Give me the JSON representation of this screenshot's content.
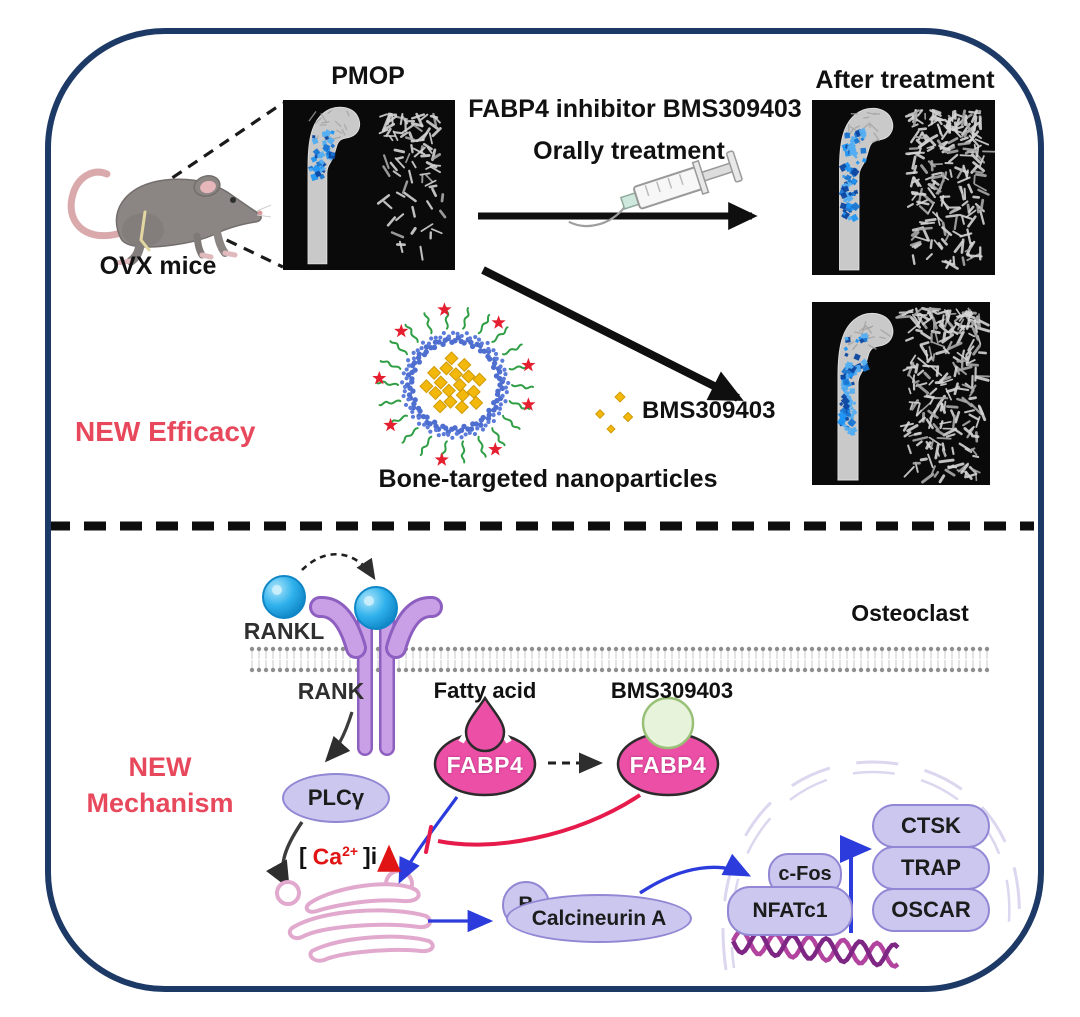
{
  "colors": {
    "frame_navy": "#1d3a66",
    "accent_red": "#e8485c",
    "fabp4_pink": "#ec4fa6",
    "pathway_lavender": "#cbc7ee",
    "arrow_blue": "#2b3bdc",
    "inhibit_red": "#e61a4b",
    "ct_blue": "#2196f3",
    "nano_yellow": "#f3b80c"
  },
  "efficacy": {
    "section_label": "NEW Efficacy",
    "ovx_label": "OVX mice",
    "pmop_label": "PMOP",
    "treatment_line1": "FABP4 inhibitor BMS309403",
    "treatment_line2": "Orally treatment",
    "after_label": "After treatment",
    "bms_label": "BMS309403",
    "nanoparticle_label": "Bone-targeted nanoparticles"
  },
  "mechanism": {
    "section_label_line1": "NEW",
    "section_label_line2": "Mechanism",
    "cell_label": "Osteoclast",
    "rankl_label": "RANKL",
    "rank_label": "RANK",
    "fatty_acid_label": "Fatty acid",
    "bms_label": "BMS309403",
    "plc_label": "PLCγ",
    "ca": {
      "open": "[",
      "symbol": "Ca",
      "sup": "2+",
      "close": "]i",
      "arrow": "↑"
    },
    "fabp4_left_label": "FABP4",
    "fabp4_right_label": "FABP4",
    "calcineurin_b_label": "B",
    "calcineurin_a_label": "Calcineurin A",
    "cfos_label": "c-Fos",
    "nfatc1_label": "NFATc1",
    "genes": [
      "CTSK",
      "TRAP",
      "OSCAR"
    ]
  }
}
